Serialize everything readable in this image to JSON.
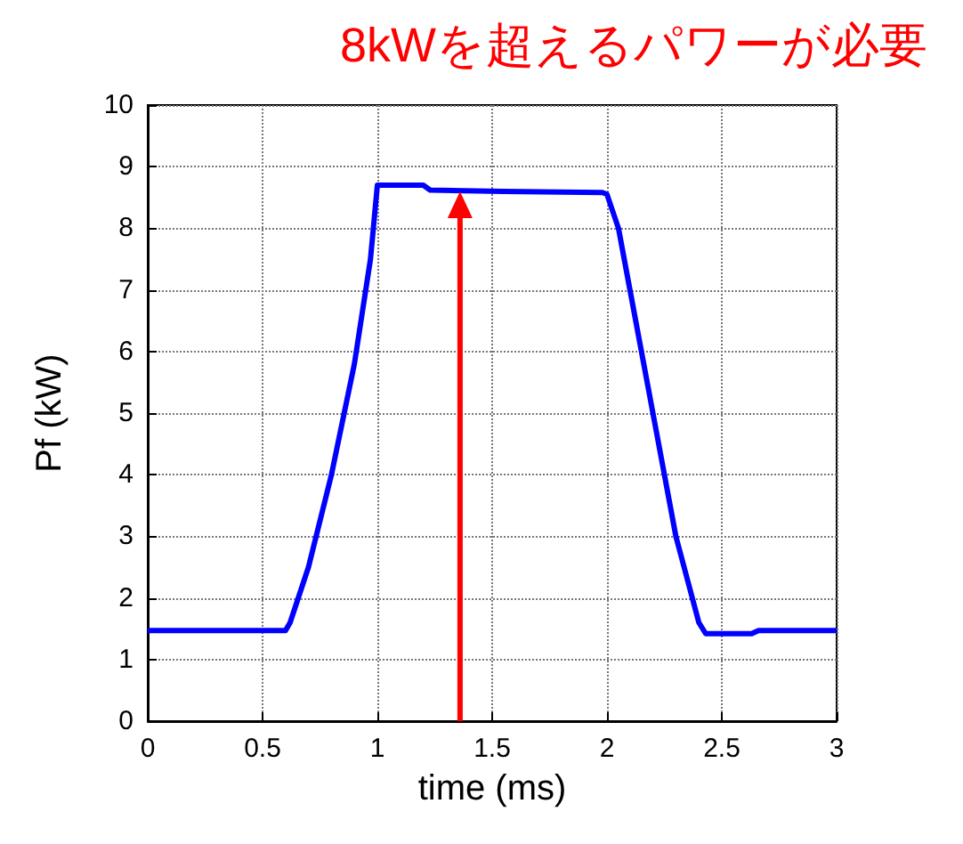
{
  "chart_data": {
    "type": "line",
    "xlabel": "time (ms)",
    "ylabel": "Pf (kW)",
    "annotations": [
      {
        "text": "8kWを超えるパワーが必要",
        "x": 1.36,
        "y": 8.6
      }
    ],
    "series": [
      {
        "color": "#0000ff",
        "x": [
          0,
          0.6,
          0.62,
          0.7,
          0.8,
          0.9,
          0.97,
          1.0,
          1.2,
          1.23,
          1.55,
          1.98,
          2.0,
          2.05,
          2.1,
          2.2,
          2.3,
          2.4,
          2.43,
          2.63,
          2.66,
          3
        ],
        "values": [
          1.47,
          1.47,
          1.6,
          2.5,
          4.0,
          5.8,
          7.5,
          8.7,
          8.7,
          8.62,
          8.6,
          8.58,
          8.55,
          8.0,
          7.0,
          5.0,
          3.0,
          1.6,
          1.42,
          1.42,
          1.47,
          1.47
        ]
      }
    ],
    "xlim": [
      0,
      3
    ],
    "xticks": [
      0,
      0.5,
      1,
      1.5,
      2,
      2.5,
      3
    ],
    "ylim": [
      0,
      10
    ],
    "yticks": [
      0,
      1,
      2,
      3,
      4,
      5,
      6,
      7,
      8,
      9,
      10
    ],
    "grid": true,
    "marker": "none",
    "line_style": "solid"
  }
}
